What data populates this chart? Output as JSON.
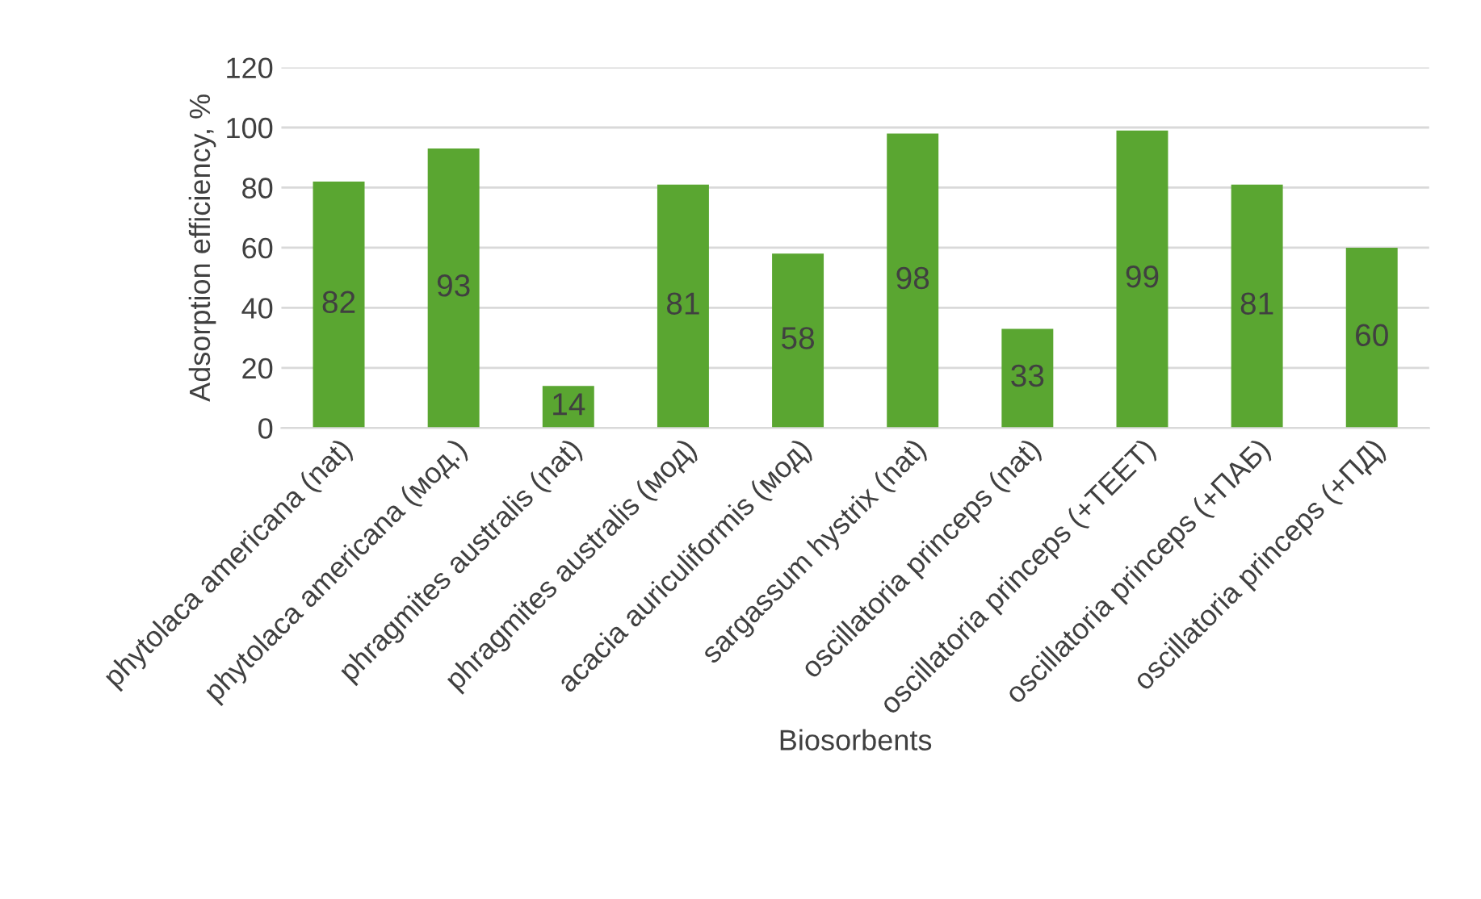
{
  "chart_data": {
    "type": "bar",
    "xlabel": "Biosorbents",
    "ylabel": "Adsorption efficiency, %",
    "categories": [
      "phytolaca americana (nat)",
      "phytolaca americana (мод.)",
      "phragmites australis (nat)",
      "phragmites australis (мод)",
      "acacia auriculiformis (мод)",
      "sargassum hystrix (nat)",
      "oscillatoria princeps (nat)",
      "oscillatoria princeps (+TEET)",
      "oscillatoria princeps (+ПАБ)",
      "oscillatoria princeps (+ПД)"
    ],
    "values": [
      82,
      93,
      14,
      81,
      58,
      98,
      33,
      99,
      81,
      60
    ],
    "color": "#5aa631",
    "ylim": [
      0,
      120
    ],
    "yticks": [
      0,
      20,
      40,
      60,
      80,
      100,
      120
    ],
    "grid": "y",
    "data_labels": true
  }
}
